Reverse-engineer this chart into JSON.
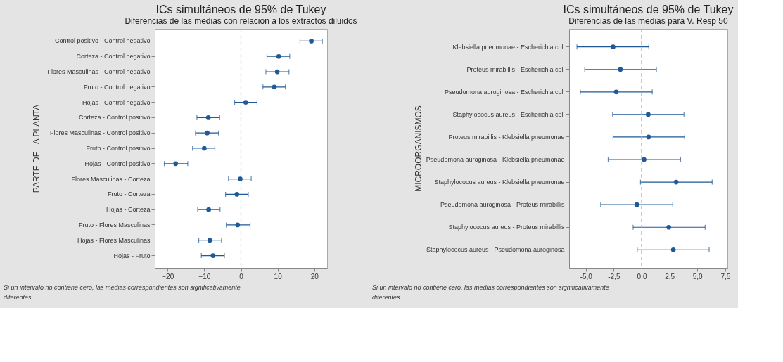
{
  "chart_data": [
    {
      "type": "scatter",
      "orientation": "horizontal",
      "title": "ICs simultáneos de 95% de Tukey",
      "subtitle": "Diferencias de las medias con relación a los extractos diluidos",
      "ylabel": "PARTE DE LA PLANTA",
      "color": "#1f5a96",
      "marker": "circle",
      "categories": [
        "Control positivo - Control negativo",
        "Corteza - Control negativo",
        "Flores Masculinas - Control negativo",
        "Fruto - Control negativo",
        "Hojas - Control negativo",
        "Corteza - Control positivo",
        "Flores Masculinas - Control positivo",
        "Fruto - Control positivo",
        "Hojas - Control positivo",
        "Flores Masculinas - Corteza",
        "Fruto - Corteza",
        "Hojas - Corteza",
        "Fruto - Flores Masculinas",
        "Hojas - Flores Masculinas",
        "Hojas - Fruto"
      ],
      "values": [
        19.2,
        10.3,
        9.9,
        9.1,
        1.3,
        -8.9,
        -9.2,
        -10.0,
        -17.8,
        -0.2,
        -1.1,
        -8.8,
        -0.9,
        -8.5,
        -7.6
      ],
      "errors": [
        [
          16.1,
          22.2
        ],
        [
          7.1,
          13.3
        ],
        [
          6.8,
          13.1
        ],
        [
          6.0,
          12.1
        ],
        [
          -1.7,
          4.4
        ],
        [
          -12.0,
          -5.8
        ],
        [
          -12.4,
          -6.1
        ],
        [
          -13.2,
          -7.1
        ],
        [
          -20.9,
          -14.5
        ],
        [
          -3.4,
          2.8
        ],
        [
          -4.2,
          2.0
        ],
        [
          -11.8,
          -5.7
        ],
        [
          -4.0,
          2.5
        ],
        [
          -11.5,
          -5.3
        ],
        [
          -10.8,
          -4.5
        ]
      ],
      "xlim": [
        -23.5,
        23.5
      ],
      "xticks": [
        -20,
        -10,
        0,
        10,
        20
      ],
      "ref_lines": [
        {
          "axis": "x",
          "value": 0,
          "color": "#8fb8b0",
          "line_style": "dashed"
        }
      ],
      "annotations": [
        "Si un intervalo no contiene cero, las medias correspondientes son significativamente diferentes."
      ]
    },
    {
      "type": "scatter",
      "orientation": "horizontal",
      "title": "ICs simultáneos de 95% de Tukey",
      "subtitle": "Diferencias de las medias para V. Resp 50",
      "ylabel": "MICROORGANISMOS",
      "color": "#1f5a96",
      "marker": "circle",
      "categories": [
        "Klebsiella pneumonae - Escherichia coli",
        "Proteus mirabillis - Escherichia coli",
        "Pseudomona auroginosa - Escherichia coli",
        "Staphylococus aureus - Escherichia coli",
        "Proteus mirabillis - Klebsiella pneumonae",
        "Pseudomona auroginosa - Klebsiella pneumonae",
        "Staphylococus aureus - Klebsiella pneumonae",
        "Pseudomona auroginosa - Proteus mirabillis",
        "Staphylococus aureus - Proteus mirabillis",
        "Staphylococus aureus - Pseudomona auroginosa"
      ],
      "values": [
        -2.56,
        -1.9,
        -2.28,
        0.59,
        0.63,
        0.22,
        3.1,
        -0.43,
        2.44,
        2.85
      ],
      "errors": [
        [
          -5.8,
          0.65
        ],
        [
          -5.1,
          1.33
        ],
        [
          -5.5,
          0.96
        ],
        [
          -2.6,
          3.8
        ],
        [
          -2.56,
          3.87
        ],
        [
          -3.0,
          3.5
        ],
        [
          -0.1,
          6.33
        ],
        [
          -3.67,
          2.8
        ],
        [
          -0.76,
          5.7
        ],
        [
          -0.39,
          6.06
        ]
      ],
      "xlim": [
        -6.5,
        7.7
      ],
      "xticks": [
        {
          "value": -5,
          "label": "-5,0"
        },
        {
          "value": -2.5,
          "label": "-2,5"
        },
        {
          "value": 0,
          "label": "0,0"
        },
        {
          "value": 2.5,
          "label": "2,5"
        },
        {
          "value": 5,
          "label": "5,0"
        },
        {
          "value": 7.5,
          "label": "7,5"
        }
      ],
      "ref_lines": [
        {
          "axis": "x",
          "value": 0,
          "color": "#8fb8b0",
          "line_style": "dashed"
        }
      ],
      "annotations": [
        "Si un intervalo no contiene cero, las medias correspondientes son significativamente diferentes."
      ]
    }
  ]
}
